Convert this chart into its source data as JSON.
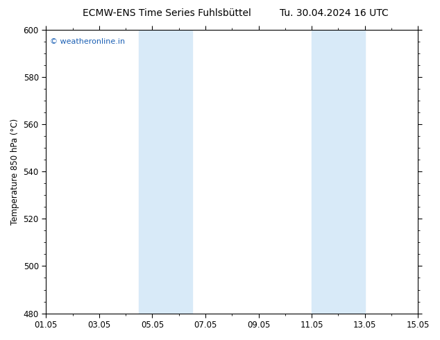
{
  "title_left": "ECMW-ENS Time Series Fuhlsbüttel",
  "title_right": "Tu. 30.04.2024 16 UTC",
  "ylabel": "Temperature 850 hPa (°C)",
  "ylim": [
    480,
    600
  ],
  "yticks": [
    480,
    500,
    520,
    540,
    560,
    580,
    600
  ],
  "xtick_labels": [
    "01.05",
    "03.05",
    "05.05",
    "07.05",
    "09.05",
    "11.05",
    "13.05",
    "15.05"
  ],
  "xtick_positions": [
    0,
    2,
    4,
    6,
    8,
    10,
    12,
    14
  ],
  "xlim": [
    0,
    14
  ],
  "shade_bands": [
    {
      "xmin": 3.5,
      "xmax": 5.5
    },
    {
      "xmin": 10.0,
      "xmax": 12.0
    }
  ],
  "shade_color": "#d8eaf8",
  "background_color": "#ffffff",
  "watermark_text": "© weatheronline.in",
  "watermark_color": "#1a5fb4",
  "title_fontsize": 10,
  "axis_label_fontsize": 8.5,
  "tick_fontsize": 8.5,
  "watermark_fontsize": 8
}
